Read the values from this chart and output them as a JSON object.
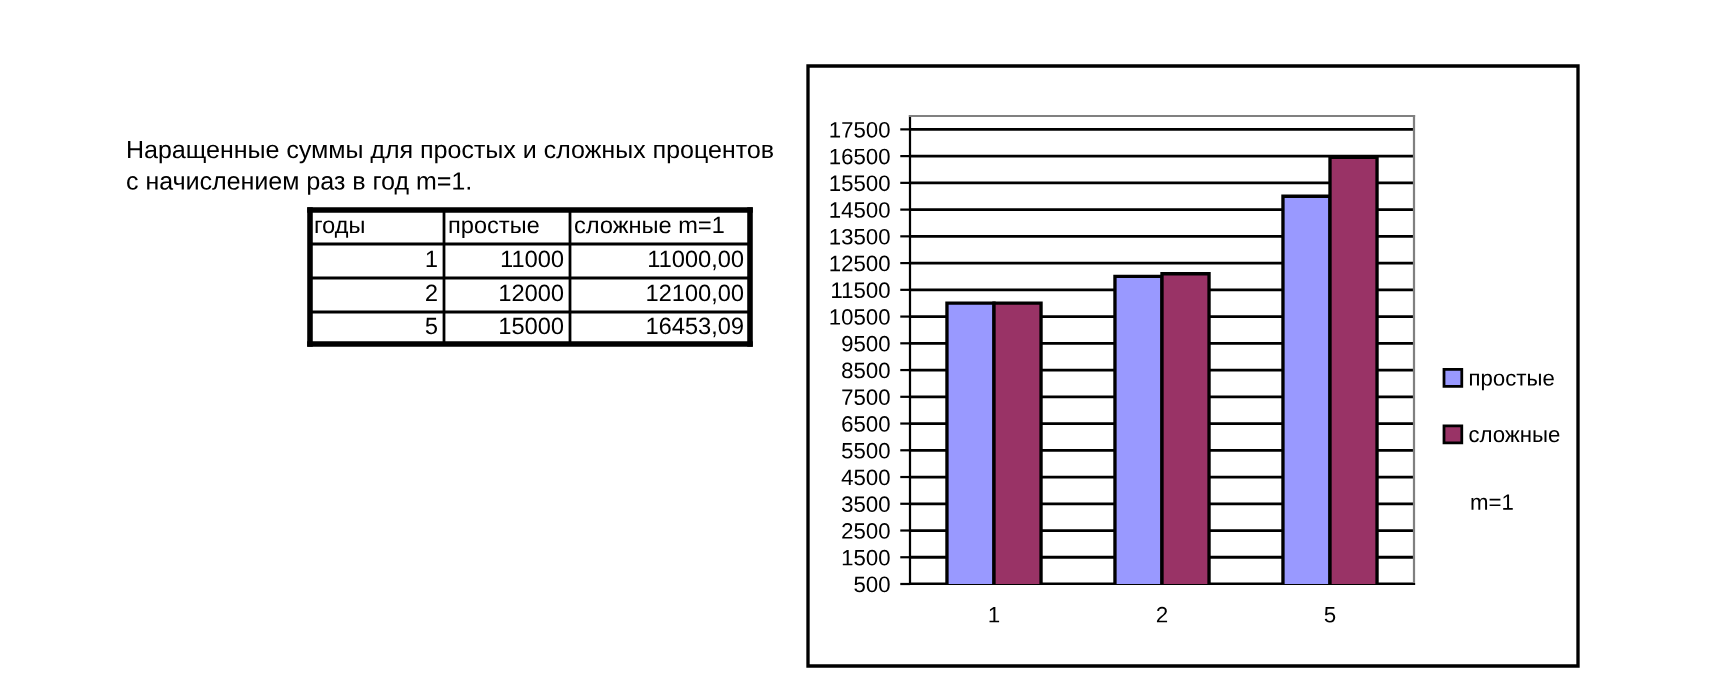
{
  "chart_data": {
    "type": "bar",
    "title": "Наращенные суммы для простых и сложных процентов\nс начислением раз в год m=1.",
    "categories": [
      "1",
      "2",
      "5"
    ],
    "series": [
      {
        "name": "простые",
        "color": "#9999ff",
        "values": [
          11000,
          12000,
          15000
        ]
      },
      {
        "name": "сложные",
        "color": "#993366",
        "values": [
          11000,
          12100,
          16453.09
        ]
      }
    ],
    "annotations": [
      "годы",
      "простые",
      "сложные m=1",
      "1",
      "11000",
      "11000,00",
      "2",
      "12000",
      "12100,00",
      "5",
      "15000",
      "16453,09",
      "m=1"
    ],
    "ylim": [
      500,
      18000
    ],
    "yticks": [
      500,
      1500,
      2500,
      3500,
      4500,
      5500,
      6500,
      7500,
      8500,
      9500,
      10500,
      11500,
      12500,
      13500,
      14500,
      15500,
      16500,
      17500
    ],
    "grid": "y",
    "legend": "right"
  }
}
